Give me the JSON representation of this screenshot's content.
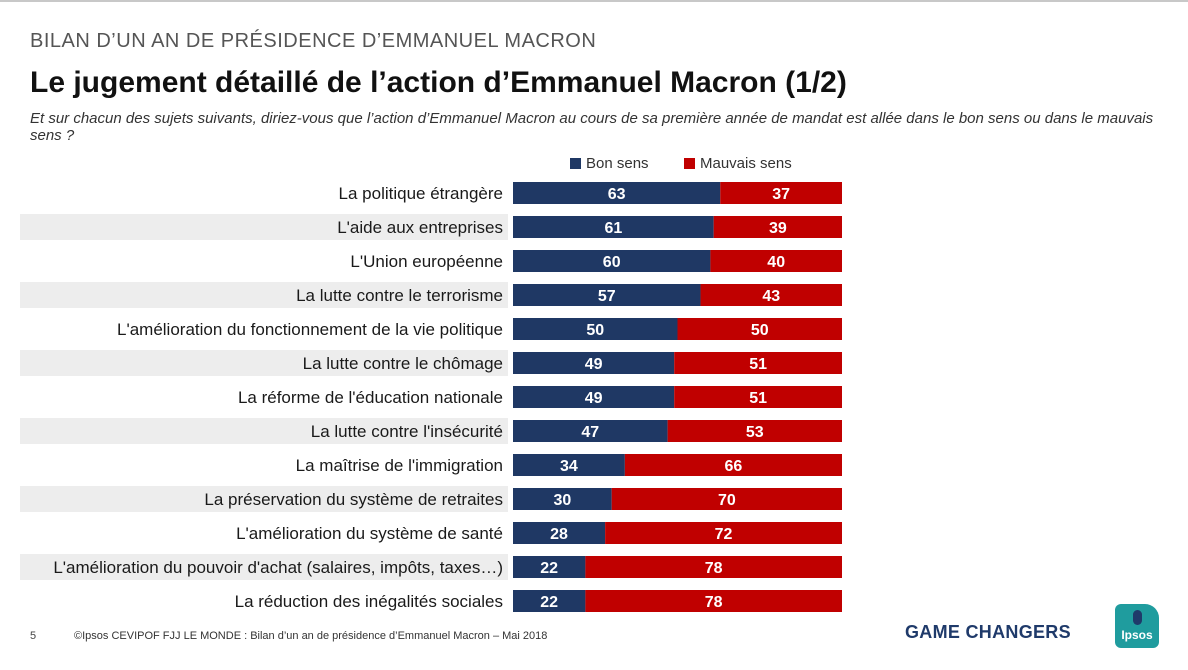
{
  "header": {
    "kicker": "BILAN D’UN AN DE PRÉSIDENCE D’EMMANUEL MACRON"
  },
  "chart_data": {
    "type": "bar",
    "orientation": "horizontal",
    "stacked": true,
    "title": "Le jugement détaillé de l’action d’Emmanuel Macron (1/2)",
    "subtitle": "Et sur chacun des sujets suivants, diriez-vous que l’action d’Emmanuel Macron au cours de sa première année de mandat est allée dans le bon sens ou dans le mauvais sens ?",
    "categories": [
      "La politique étrangère",
      "L'aide aux entreprises",
      "L'Union européenne",
      "La lutte contre le terrorisme",
      "L'amélioration du fonctionnement de la vie politique",
      "La lutte contre le chômage",
      "La réforme de l'éducation nationale",
      "La lutte contre l'insécurité",
      "La maîtrise de l'immigration",
      "La préservation du système de retraites",
      "L'amélioration du système de santé",
      "L'amélioration du pouvoir d'achat (salaires, impôts, taxes…)",
      "La réduction des inégalités sociales"
    ],
    "series": [
      {
        "name": "Bon sens",
        "color": "#1f3864",
        "values": [
          63,
          61,
          60,
          57,
          50,
          49,
          49,
          47,
          34,
          30,
          28,
          22,
          22
        ]
      },
      {
        "name": "Mauvais sens",
        "color": "#c00000",
        "values": [
          37,
          39,
          40,
          43,
          50,
          51,
          51,
          53,
          66,
          70,
          72,
          78,
          78
        ]
      }
    ],
    "xlim": [
      0,
      100
    ],
    "legend_position": "top-right",
    "row_stripe_color": "#ededed"
  },
  "footer": {
    "page_number": "5",
    "source": "©Ipsos  CEVIPOF FJJ LE MONDE : Bilan d’un an de présidence d’Emmanuel Macron – Mai 2018",
    "tagline": "GAME CHANGERS",
    "logo_text": "Ipsos"
  }
}
